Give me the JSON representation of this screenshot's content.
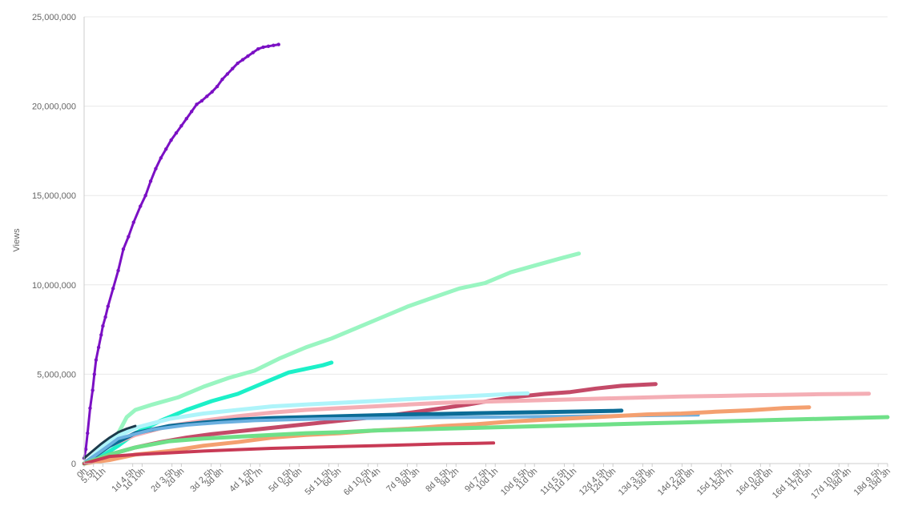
{
  "chart_data": {
    "type": "line",
    "ylabel": "Views",
    "xlabel": "",
    "ylim": [
      0,
      25000000
    ],
    "y_ticks": [
      0,
      5000000,
      10000000,
      15000000,
      20000000,
      25000000
    ],
    "y_tick_labels": [
      "0",
      "5,000,000",
      "10,000,000",
      "15,000,000",
      "20,000,000",
      "25,000,000"
    ],
    "x_unit": "hours",
    "xlim": [
      0,
      471
    ],
    "x_ticks": [
      0,
      5.5,
      11,
      28.5,
      34,
      51.5,
      57,
      74.5,
      80,
      97.5,
      103,
      120.5,
      126,
      143.5,
      149,
      166.5,
      172,
      189.5,
      195,
      212.5,
      218,
      235.5,
      241,
      258.5,
      264,
      281.5,
      287,
      304.5,
      310,
      327.5,
      333,
      350.5,
      356,
      373.5,
      379,
      396.5,
      402,
      419.5,
      425,
      442.5,
      448,
      465.5,
      471
    ],
    "x_tick_labels": [
      "0h",
      "5.5h",
      "11h",
      "1d 4.5h",
      "1d 10h",
      "2d 3.5h",
      "2d 9h",
      "3d 2.5h",
      "3d 8h",
      "4d 1.5h",
      "4d 7h",
      "5d 0.5h",
      "5d 6h",
      "5d 11.5h",
      "6d 5h",
      "6d 10.5h",
      "7d 4h",
      "7d 9.5h",
      "8d 3h",
      "8d 8.5h",
      "9d 2h",
      "9d 7.5h",
      "10d 1h",
      "10d 6.5h",
      "11d 0h",
      "11d 5.5h",
      "11d 11h",
      "12d 4.5h",
      "12d 10h",
      "13d 3.5h",
      "13d 9h",
      "14d 2.5h",
      "14d 8h",
      "15d 1.5h",
      "15d 7h",
      "16d 0.5h",
      "16d 6h",
      "16d 11.5h",
      "17d 5h",
      "17d 10.5h",
      "18d 4h",
      "18d 9.5h",
      "19d 3h"
    ],
    "grid": true,
    "legend": "none",
    "series": [
      {
        "color": "#7b10c4",
        "width": 3,
        "markers": true,
        "x": [
          0,
          1,
          2,
          3.5,
          5,
          6,
          7,
          8.5,
          10,
          11,
          12.5,
          14,
          17,
          20,
          23,
          26,
          29,
          33,
          36,
          39,
          42,
          45,
          48,
          51,
          54,
          57,
          60,
          63,
          66,
          69,
          72,
          75,
          78,
          81,
          84,
          87,
          90,
          93,
          96,
          99,
          102,
          105,
          108,
          111,
          114
        ],
        "y": [
          300000,
          800000,
          1700000,
          3100000,
          4100000,
          5000000,
          5800000,
          6500000,
          7200000,
          7700000,
          8200000,
          8800000,
          9800000,
          10800000,
          12000000,
          12700000,
          13500000,
          14400000,
          15000000,
          15800000,
          16500000,
          17100000,
          17600000,
          18100000,
          18500000,
          18900000,
          19300000,
          19700000,
          20100000,
          20300000,
          20550000,
          20800000,
          21100000,
          21500000,
          21800000,
          22100000,
          22400000,
          22600000,
          22800000,
          23000000,
          23200000,
          23300000,
          23350000,
          23400000,
          23450000
        ]
      },
      {
        "color": "#99f5c1",
        "width": 5,
        "markers": false,
        "x": [
          0,
          10,
          20,
          25,
          30,
          40,
          55,
          70,
          85,
          100,
          115,
          130,
          145,
          160,
          175,
          190,
          205,
          220,
          235,
          250,
          265,
          280,
          290
        ],
        "y": [
          0,
          600000,
          1700000,
          2600000,
          3000000,
          3300000,
          3700000,
          4300000,
          4800000,
          5200000,
          5900000,
          6500000,
          7000000,
          7600000,
          8200000,
          8800000,
          9300000,
          9800000,
          10100000,
          10700000,
          11100000,
          11500000,
          11750000
        ]
      },
      {
        "color": "#1cf0c8",
        "width": 5,
        "markers": false,
        "x": [
          0,
          10,
          20,
          30,
          45,
          60,
          75,
          90,
          100,
          110,
          120,
          130,
          140,
          145
        ],
        "y": [
          0,
          400000,
          1000000,
          1700000,
          2400000,
          3000000,
          3500000,
          3900000,
          4300000,
          4700000,
          5100000,
          5300000,
          5500000,
          5650000
        ]
      },
      {
        "color": "#c44a68",
        "width": 5,
        "markers": false,
        "x": [
          0,
          15,
          30,
          45,
          60,
          75,
          90,
          105,
          120,
          135,
          150,
          165,
          180,
          195,
          210,
          225,
          240,
          255,
          270,
          285,
          300,
          315,
          335
        ],
        "y": [
          0,
          500000,
          900000,
          1200000,
          1450000,
          1650000,
          1800000,
          1950000,
          2100000,
          2250000,
          2400000,
          2550000,
          2700000,
          2900000,
          3100000,
          3300000,
          3550000,
          3750000,
          3900000,
          4000000,
          4200000,
          4350000,
          4450000
        ]
      },
      {
        "color": "#f4aeb5",
        "width": 5,
        "markers": false,
        "x": [
          0,
          15,
          30,
          50,
          70,
          90,
          110,
          130,
          150,
          170,
          190,
          210,
          230,
          250,
          270,
          290,
          310,
          330,
          350,
          370,
          390,
          410,
          430,
          450,
          460
        ],
        "y": [
          0,
          1000000,
          1600000,
          2100000,
          2400000,
          2650000,
          2850000,
          3000000,
          3100000,
          3200000,
          3300000,
          3400000,
          3450000,
          3500000,
          3550000,
          3600000,
          3650000,
          3700000,
          3750000,
          3780000,
          3820000,
          3850000,
          3880000,
          3900000,
          3910000
        ]
      },
      {
        "color": "#aef4fa",
        "width": 5,
        "markers": false,
        "x": [
          0,
          15,
          30,
          50,
          70,
          90,
          110,
          130,
          150,
          170,
          190,
          210,
          230,
          250,
          260
        ],
        "y": [
          0,
          1300000,
          2000000,
          2500000,
          2800000,
          3000000,
          3200000,
          3300000,
          3400000,
          3500000,
          3600000,
          3700000,
          3800000,
          3900000,
          3930000
        ]
      },
      {
        "color": "#0b6c96",
        "width": 5,
        "markers": false,
        "x": [
          0,
          15,
          30,
          50,
          70,
          90,
          110,
          130,
          150,
          170,
          190,
          210,
          230,
          250,
          270,
          290,
          310,
          315
        ],
        "y": [
          0,
          1000000,
          1700000,
          2100000,
          2300000,
          2450000,
          2550000,
          2600000,
          2650000,
          2700000,
          2750000,
          2780000,
          2820000,
          2850000,
          2880000,
          2910000,
          2950000,
          2960000
        ]
      },
      {
        "color": "#6cb0e0",
        "width": 4,
        "markers": false,
        "x": [
          0,
          20,
          40,
          60,
          80,
          100,
          120,
          140,
          160,
          180,
          200,
          220,
          240,
          260,
          280,
          300,
          320,
          340,
          360
        ],
        "y": [
          0,
          1400000,
          1900000,
          2150000,
          2300000,
          2400000,
          2450000,
          2500000,
          2520000,
          2550000,
          2570000,
          2590000,
          2600000,
          2620000,
          2640000,
          2660000,
          2680000,
          2700000,
          2720000
        ]
      },
      {
        "color": "#f4a070",
        "width": 5,
        "markers": false,
        "x": [
          0,
          15,
          30,
          50,
          70,
          90,
          110,
          130,
          150,
          170,
          190,
          210,
          230,
          250,
          270,
          290,
          310,
          330,
          350,
          370,
          390,
          410,
          425
        ],
        "y": [
          0,
          200000,
          500000,
          700000,
          1000000,
          1200000,
          1450000,
          1600000,
          1700000,
          1850000,
          1950000,
          2100000,
          2200000,
          2350000,
          2450000,
          2550000,
          2650000,
          2750000,
          2800000,
          2900000,
          2980000,
          3100000,
          3150000
        ]
      },
      {
        "color": "#6fe088",
        "width": 5,
        "markers": false,
        "x": [
          0,
          15,
          30,
          50,
          70,
          90,
          110,
          130,
          150,
          170,
          190,
          210,
          230,
          250,
          270,
          290,
          310,
          330,
          350,
          370,
          390,
          410,
          430,
          450,
          471
        ],
        "y": [
          0,
          500000,
          900000,
          1250000,
          1400000,
          1500000,
          1600000,
          1700000,
          1750000,
          1850000,
          1900000,
          1950000,
          2000000,
          2050000,
          2100000,
          2150000,
          2200000,
          2250000,
          2300000,
          2350000,
          2400000,
          2450000,
          2500000,
          2550000,
          2600000
        ]
      },
      {
        "color": "#c83a55",
        "width": 4,
        "markers": false,
        "x": [
          0,
          15,
          30,
          50,
          70,
          90,
          110,
          130,
          150,
          170,
          190,
          210,
          230,
          240
        ],
        "y": [
          0,
          400000,
          500000,
          600000,
          700000,
          780000,
          850000,
          900000,
          950000,
          1000000,
          1050000,
          1100000,
          1130000,
          1150000
        ]
      },
      {
        "color": "#1b3a4b",
        "width": 3,
        "markers": false,
        "x": [
          0,
          5,
          10,
          15,
          20,
          25,
          30
        ],
        "y": [
          300000,
          700000,
          1100000,
          1450000,
          1750000,
          1950000,
          2100000
        ]
      }
    ]
  }
}
